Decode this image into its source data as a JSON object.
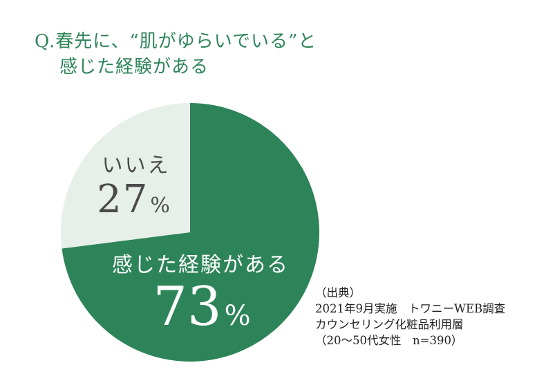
{
  "colors": {
    "title": "#2f855a",
    "slice_yes": "#2e8459",
    "slice_no": "#e6efe8",
    "label_on_dark": "#ffffff",
    "label_on_light": "#4a4a4a"
  },
  "title_lines": [
    "Q.春先に、“肌がゆらいでいる”と",
    "感じた経験がある"
  ],
  "chart_data": {
    "type": "pie",
    "title": "Q.春先に、“肌がゆらいでいる”と感じた経験がある",
    "slices": [
      {
        "label": "感じた経験がある",
        "value": 73,
        "display": "73",
        "unit": "%"
      },
      {
        "label": "いいえ",
        "value": 27,
        "display": "27",
        "unit": "%"
      }
    ],
    "start_angle_deg": 0,
    "direction": "clockwise"
  },
  "source": {
    "lines": [
      "（出典）",
      "2021年9月実施　トワニーWEB調査",
      "カウンセリング化粧品利用層",
      "（20〜50代女性　n=390）"
    ]
  }
}
